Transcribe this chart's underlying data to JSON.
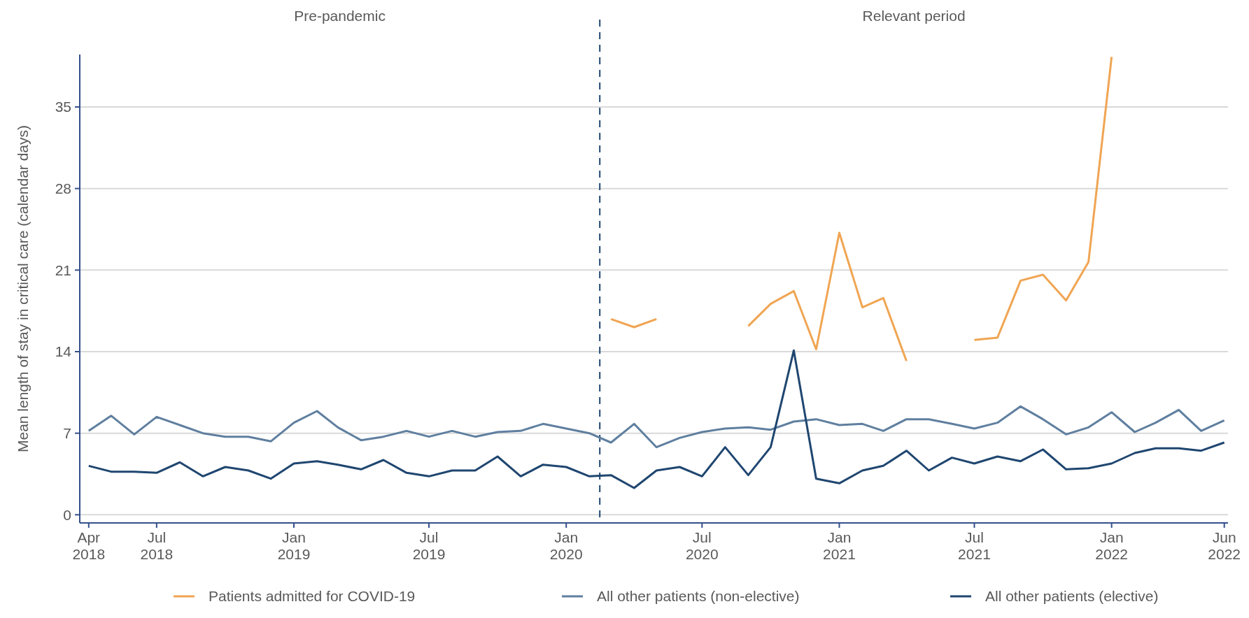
{
  "chart_data": {
    "type": "line",
    "ylabel": "Mean length of stay in critical care (calendar days)",
    "annotations": [
      "Pre-pandemic",
      "Relevant period"
    ],
    "x": [
      "2018-04",
      "2018-05",
      "2018-06",
      "2018-07",
      "2018-08",
      "2018-09",
      "2018-10",
      "2018-11",
      "2018-12",
      "2019-01",
      "2019-02",
      "2019-03",
      "2019-04",
      "2019-05",
      "2019-06",
      "2019-07",
      "2019-08",
      "2019-09",
      "2019-10",
      "2019-11",
      "2019-12",
      "2020-01",
      "2020-02",
      "2020-03",
      "2020-04",
      "2020-05",
      "2020-06",
      "2020-07",
      "2020-08",
      "2020-09",
      "2020-10",
      "2020-11",
      "2020-12",
      "2021-01",
      "2021-02",
      "2021-03",
      "2021-04",
      "2021-05",
      "2021-06",
      "2021-07",
      "2021-08",
      "2021-09",
      "2021-10",
      "2021-11",
      "2021-12",
      "2022-01",
      "2022-02",
      "2022-03",
      "2022-04",
      "2022-05",
      "2022-06"
    ],
    "series": [
      {
        "name": "Patients admitted for COVID-19",
        "color": "#f0a553",
        "values": [
          null,
          null,
          null,
          null,
          null,
          null,
          null,
          null,
          null,
          null,
          null,
          null,
          null,
          null,
          null,
          null,
          null,
          null,
          null,
          null,
          null,
          null,
          null,
          16.8,
          16.1,
          16.8,
          null,
          null,
          null,
          16.2,
          18.1,
          19.2,
          14.2,
          24.2,
          17.8,
          18.6,
          13.2,
          null,
          null,
          15.0,
          15.2,
          20.1,
          20.6,
          18.4,
          21.7,
          39.3,
          null,
          null,
          null,
          null,
          null
        ]
      },
      {
        "name": "All other patients (non-elective)",
        "color": "#5f7f9f",
        "values": [
          7.2,
          8.5,
          6.9,
          8.4,
          7.7,
          7.0,
          6.7,
          6.7,
          6.3,
          7.9,
          8.9,
          7.5,
          6.4,
          6.7,
          7.2,
          6.7,
          7.2,
          6.7,
          7.1,
          7.2,
          7.8,
          7.4,
          7.0,
          6.2,
          7.8,
          5.8,
          6.6,
          7.1,
          7.4,
          7.5,
          7.3,
          8.0,
          8.2,
          7.7,
          7.8,
          7.2,
          8.2,
          8.2,
          7.8,
          7.4,
          7.9,
          9.3,
          8.2,
          6.9,
          7.5,
          8.8,
          7.1,
          7.9,
          9.0,
          7.2,
          8.1
        ]
      },
      {
        "name": "All other patients (elective)",
        "color": "#1f4670",
        "values": [
          4.2,
          3.7,
          3.7,
          3.6,
          4.5,
          3.3,
          4.1,
          3.8,
          3.1,
          4.4,
          4.6,
          4.3,
          3.9,
          4.7,
          3.6,
          3.3,
          3.8,
          3.8,
          5.0,
          3.3,
          4.3,
          4.1,
          3.3,
          3.4,
          2.3,
          3.8,
          4.1,
          3.3,
          5.8,
          3.4,
          5.8,
          14.1,
          3.1,
          2.7,
          3.8,
          4.2,
          5.5,
          3.8,
          4.9,
          4.4,
          5.0,
          4.6,
          5.6,
          3.9,
          4.0,
          4.4,
          5.3,
          5.7,
          5.7,
          5.5,
          6.2
        ]
      }
    ],
    "xlim": [
      "2018-03-20",
      "2022-06-06"
    ],
    "xticks": [
      {
        "value": "2018-04",
        "label": "Apr 2018"
      },
      {
        "value": "2018-07",
        "label": "Jul 2018"
      },
      {
        "value": "2019-01",
        "label": "Jan 2019"
      },
      {
        "value": "2019-07",
        "label": "Jul 2019"
      },
      {
        "value": "2020-01",
        "label": "Jan 2020"
      },
      {
        "value": "2020-07",
        "label": "Jul 2020"
      },
      {
        "value": "2021-01",
        "label": "Jan 2021"
      },
      {
        "value": "2021-07",
        "label": "Jul 2021"
      },
      {
        "value": "2022-01",
        "label": "Jan 2022"
      },
      {
        "value": "2022-06",
        "label": "Jun 2022"
      }
    ],
    "ylim": [
      -0.7,
      39.5
    ],
    "yticks": [
      0,
      7,
      14,
      21,
      28,
      35
    ],
    "ref_lines": [
      {
        "axis": "x",
        "value": "2020-02-15",
        "color": "#1f4670",
        "line_style": "dashed"
      }
    ],
    "grid": "y",
    "legend": "bottom",
    "line_style": "solid",
    "marker": "none"
  }
}
